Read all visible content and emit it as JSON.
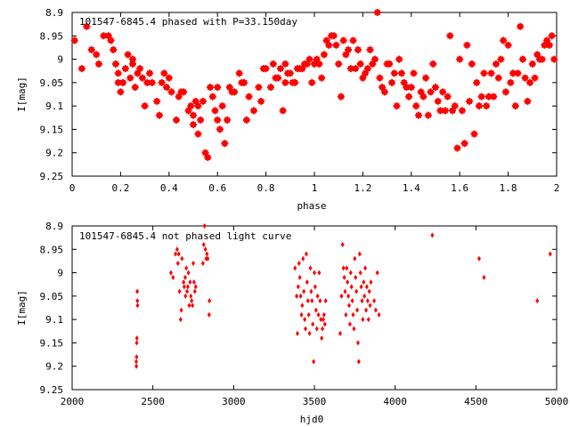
{
  "colors": {
    "points": "#ff0000",
    "axes": "#000000",
    "background": "#ffffff"
  },
  "chart_data": [
    {
      "type": "scatter",
      "title": "101547-6845.4 phased with P=33.150day",
      "xlabel": "phase",
      "ylabel": "I[mag]",
      "xlim": [
        0,
        2
      ],
      "ylim": [
        9.25,
        8.9
      ],
      "y_inverted": true,
      "grid": false,
      "marker": "star",
      "xticks": [
        "0",
        "0.2",
        "0.4",
        "0.6",
        "0.8",
        "1",
        "1.2",
        "1.4",
        "1.6",
        "1.8",
        "2"
      ],
      "yticks": [
        "8.9",
        "8.95",
        "9",
        "9.05",
        "9.1",
        "9.15",
        "9.2",
        "9.25"
      ],
      "points": [
        [
          0.01,
          8.96
        ],
        [
          0.04,
          9.02
        ],
        [
          0.06,
          8.93
        ],
        [
          0.08,
          8.98
        ],
        [
          0.1,
          8.99
        ],
        [
          0.11,
          9.01
        ],
        [
          0.13,
          8.95
        ],
        [
          0.15,
          8.95
        ],
        [
          0.16,
          8.96
        ],
        [
          0.17,
          8.98
        ],
        [
          0.18,
          9.01
        ],
        [
          0.19,
          9.05
        ],
        [
          0.19,
          9.03
        ],
        [
          0.2,
          9.07
        ],
        [
          0.21,
          9.05
        ],
        [
          0.22,
          9.02
        ],
        [
          0.23,
          8.99
        ],
        [
          0.24,
          9.04
        ],
        [
          0.25,
          9.0
        ],
        [
          0.25,
          9.01
        ],
        [
          0.26,
          9.06
        ],
        [
          0.27,
          9.03
        ],
        [
          0.28,
          9.02
        ],
        [
          0.29,
          9.04
        ],
        [
          0.3,
          9.1
        ],
        [
          0.31,
          9.05
        ],
        [
          0.32,
          9.03
        ],
        [
          0.33,
          9.05
        ],
        [
          0.35,
          9.09
        ],
        [
          0.36,
          9.12
        ],
        [
          0.37,
          9.05
        ],
        [
          0.38,
          9.03
        ],
        [
          0.39,
          9.06
        ],
        [
          0.4,
          9.04
        ],
        [
          0.41,
          9.07
        ],
        [
          0.43,
          9.13
        ],
        [
          0.44,
          9.08
        ],
        [
          0.45,
          9.07
        ],
        [
          0.46,
          9.07
        ],
        [
          0.48,
          9.11
        ],
        [
          0.49,
          9.1
        ],
        [
          0.5,
          9.12
        ],
        [
          0.5,
          9.14
        ],
        [
          0.51,
          9.09
        ],
        [
          0.52,
          9.16
        ],
        [
          0.52,
          9.1
        ],
        [
          0.53,
          9.13
        ],
        [
          0.54,
          9.09
        ],
        [
          0.55,
          9.2
        ],
        [
          0.56,
          9.21
        ],
        [
          0.57,
          9.06
        ],
        [
          0.58,
          9.08
        ],
        [
          0.59,
          9.11
        ],
        [
          0.6,
          9.13
        ],
        [
          0.6,
          9.06
        ],
        [
          0.61,
          9.15
        ],
        [
          0.62,
          9.1
        ],
        [
          0.63,
          9.18
        ],
        [
          0.64,
          9.13
        ],
        [
          0.65,
          9.06
        ],
        [
          0.66,
          9.07
        ],
        [
          0.67,
          9.07
        ],
        [
          0.69,
          9.03
        ],
        [
          0.7,
          9.05
        ],
        [
          0.71,
          9.05
        ],
        [
          0.72,
          9.13
        ],
        [
          0.73,
          9.08
        ],
        [
          0.75,
          9.11
        ],
        [
          0.77,
          9.06
        ],
        [
          0.78,
          9.09
        ],
        [
          0.79,
          9.02
        ],
        [
          0.8,
          9.02
        ],
        [
          0.82,
          9.06
        ],
        [
          0.83,
          9.01
        ],
        [
          0.84,
          9.04
        ],
        [
          0.85,
          9.04
        ],
        [
          0.86,
          9.02
        ],
        [
          0.87,
          9.11
        ],
        [
          0.88,
          9.01
        ],
        [
          0.88,
          9.05
        ],
        [
          0.89,
          9.03
        ],
        [
          0.9,
          9.03
        ],
        [
          0.91,
          9.05
        ],
        [
          0.92,
          9.05
        ],
        [
          0.93,
          9.02
        ],
        [
          0.94,
          9.02
        ],
        [
          0.95,
          9.02
        ],
        [
          0.96,
          9.01
        ],
        [
          0.97,
          9.01
        ],
        [
          0.98,
          9.0
        ],
        [
          0.99,
          9.05
        ],
        [
          1.0,
          9.01
        ],
        [
          1.01,
          9.0
        ],
        [
          1.02,
          9.01
        ],
        [
          1.03,
          9.04
        ],
        [
          1.04,
          8.99
        ],
        [
          1.05,
          8.96
        ],
        [
          1.06,
          8.97
        ],
        [
          1.07,
          8.95
        ],
        [
          1.08,
          8.95
        ],
        [
          1.09,
          8.97
        ],
        [
          1.1,
          9.01
        ],
        [
          1.11,
          9.08
        ],
        [
          1.12,
          8.96
        ],
        [
          1.13,
          8.99
        ],
        [
          1.14,
          8.98
        ],
        [
          1.15,
          9.02
        ],
        [
          1.16,
          8.96
        ],
        [
          1.17,
          9.02
        ],
        [
          1.18,
          8.98
        ],
        [
          1.19,
          9.01
        ],
        [
          1.2,
          9.04
        ],
        [
          1.21,
          9.03
        ],
        [
          1.22,
          9.02
        ],
        [
          1.23,
          8.98
        ],
        [
          1.24,
          9.01
        ],
        [
          1.25,
          9.0
        ],
        [
          1.26,
          8.9
        ],
        [
          1.27,
          9.04
        ],
        [
          1.28,
          9.06
        ],
        [
          1.29,
          9.07
        ],
        [
          1.3,
          9.01
        ],
        [
          1.31,
          9.01
        ],
        [
          1.32,
          9.05
        ],
        [
          1.33,
          9.03
        ],
        [
          1.34,
          9.1
        ],
        [
          1.35,
          9.0
        ],
        [
          1.36,
          9.03
        ],
        [
          1.37,
          9.05
        ],
        [
          1.38,
          9.06
        ],
        [
          1.39,
          9.08
        ],
        [
          1.4,
          9.06
        ],
        [
          1.41,
          9.03
        ],
        [
          1.42,
          9.1
        ],
        [
          1.43,
          9.12
        ],
        [
          1.44,
          9.07
        ],
        [
          1.45,
          9.08
        ],
        [
          1.46,
          9.04
        ],
        [
          1.47,
          9.12
        ],
        [
          1.48,
          9.07
        ],
        [
          1.49,
          9.01
        ],
        [
          1.5,
          9.06
        ],
        [
          1.51,
          9.09
        ],
        [
          1.52,
          9.11
        ],
        [
          1.53,
          9.07
        ],
        [
          1.54,
          9.11
        ],
        [
          1.55,
          9.08
        ],
        [
          1.56,
          8.95
        ],
        [
          1.57,
          9.11
        ],
        [
          1.58,
          9.1
        ],
        [
          1.59,
          9.19
        ],
        [
          1.6,
          9.0
        ],
        [
          1.61,
          9.11
        ],
        [
          1.62,
          9.18
        ],
        [
          1.63,
          8.97
        ],
        [
          1.64,
          9.09
        ],
        [
          1.65,
          9.01
        ],
        [
          1.66,
          9.16
        ],
        [
          1.67,
          9.05
        ],
        [
          1.68,
          9.1
        ],
        [
          1.69,
          9.08
        ],
        [
          1.7,
          9.03
        ],
        [
          1.71,
          9.1
        ],
        [
          1.72,
          9.08
        ],
        [
          1.73,
          9.03
        ],
        [
          1.74,
          9.08
        ],
        [
          1.75,
          9.01
        ],
        [
          1.76,
          9.04
        ],
        [
          1.77,
          9.0
        ],
        [
          1.78,
          8.96
        ],
        [
          1.79,
          9.07
        ],
        [
          1.8,
          8.97
        ],
        [
          1.81,
          9.05
        ],
        [
          1.82,
          9.03
        ],
        [
          1.83,
          9.1
        ],
        [
          1.84,
          9.03
        ],
        [
          1.85,
          8.93
        ],
        [
          1.86,
          9.0
        ],
        [
          1.87,
          9.04
        ],
        [
          1.88,
          9.09
        ],
        [
          1.89,
          9.05
        ],
        [
          1.9,
          9.01
        ],
        [
          1.91,
          9.04
        ],
        [
          1.92,
          8.99
        ],
        [
          1.93,
          9.0
        ],
        [
          1.94,
          9.0
        ],
        [
          1.95,
          8.97
        ],
        [
          1.96,
          8.96
        ],
        [
          1.97,
          8.97
        ],
        [
          1.98,
          8.95
        ],
        [
          1.99,
          9.0
        ]
      ]
    },
    {
      "type": "scatter",
      "title": "101547-6845.4 not phased light curve",
      "xlabel": "hjd0",
      "ylabel": "I[mag]",
      "xlim": [
        2000,
        5000
      ],
      "ylim": [
        9.25,
        8.9
      ],
      "y_inverted": true,
      "grid": false,
      "marker": "diamond",
      "xticks": [
        "2000",
        "2500",
        "3000",
        "3500",
        "4000",
        "4500",
        "5000"
      ],
      "yticks": [
        "8.9",
        "8.95",
        "9",
        "9.05",
        "9.1",
        "9.15",
        "9.2",
        "9.25"
      ],
      "points": [
        [
          2397,
          9.19
        ],
        [
          2398,
          9.2
        ],
        [
          2399,
          9.18
        ],
        [
          2400,
          9.15
        ],
        [
          2401,
          9.14
        ],
        [
          2403,
          9.04
        ],
        [
          2404,
          9.06
        ],
        [
          2405,
          9.07
        ],
        [
          2612,
          9.0
        ],
        [
          2625,
          9.01
        ],
        [
          2640,
          8.96
        ],
        [
          2650,
          8.95
        ],
        [
          2655,
          8.98
        ],
        [
          2660,
          8.96
        ],
        [
          2665,
          9.04
        ],
        [
          2672,
          9.1
        ],
        [
          2676,
          9.08
        ],
        [
          2680,
          8.97
        ],
        [
          2690,
          9.02
        ],
        [
          2694,
          9.03
        ],
        [
          2700,
          9.01
        ],
        [
          2702,
          9.05
        ],
        [
          2707,
          8.99
        ],
        [
          2712,
          9.04
        ],
        [
          2716,
          9.03
        ],
        [
          2720,
          9.0
        ],
        [
          2725,
          9.07
        ],
        [
          2730,
          9.02
        ],
        [
          2735,
          9.05
        ],
        [
          2740,
          9.06
        ],
        [
          2745,
          9.07
        ],
        [
          2750,
          8.98
        ],
        [
          2755,
          9.02
        ],
        [
          2760,
          9.04
        ],
        [
          2765,
          9.03
        ],
        [
          2810,
          8.98
        ],
        [
          2815,
          8.94
        ],
        [
          2820,
          8.9
        ],
        [
          2825,
          8.95
        ],
        [
          2830,
          8.97
        ],
        [
          2835,
          8.96
        ],
        [
          2840,
          8.97
        ],
        [
          2848,
          9.09
        ],
        [
          2850,
          9.06
        ],
        [
          3380,
          8.99
        ],
        [
          3390,
          9.05
        ],
        [
          3395,
          9.13
        ],
        [
          3400,
          9.03
        ],
        [
          3405,
          8.98
        ],
        [
          3410,
          9.01
        ],
        [
          3415,
          9.05
        ],
        [
          3420,
          9.09
        ],
        [
          3425,
          9.07
        ],
        [
          3430,
          8.97
        ],
        [
          3435,
          9.04
        ],
        [
          3440,
          9.1
        ],
        [
          3445,
          9.12
        ],
        [
          3450,
          8.96
        ],
        [
          3455,
          9.02
        ],
        [
          3460,
          9.06
        ],
        [
          3465,
          9.09
        ],
        [
          3470,
          9.13
        ],
        [
          3475,
          8.99
        ],
        [
          3480,
          9.04
        ],
        [
          3485,
          9.06
        ],
        [
          3490,
          9.11
        ],
        [
          3495,
          9.19
        ],
        [
          3500,
          9.0
        ],
        [
          3505,
          9.03
        ],
        [
          3510,
          9.08
        ],
        [
          3515,
          9.12
        ],
        [
          3520,
          9.05
        ],
        [
          3525,
          9.09
        ],
        [
          3530,
          9.0
        ],
        [
          3535,
          9.06
        ],
        [
          3540,
          9.1
        ],
        [
          3545,
          9.14
        ],
        [
          3550,
          9.12
        ],
        [
          3555,
          9.1
        ],
        [
          3560,
          9.09
        ],
        [
          3565,
          9.11
        ],
        [
          3570,
          9.06
        ],
        [
          3660,
          9.13
        ],
        [
          3668,
          9.05
        ],
        [
          3675,
          8.94
        ],
        [
          3680,
          8.99
        ],
        [
          3685,
          9.01
        ],
        [
          3690,
          9.04
        ],
        [
          3695,
          9.09
        ],
        [
          3700,
          8.99
        ],
        [
          3705,
          9.02
        ],
        [
          3710,
          9.05
        ],
        [
          3715,
          9.07
        ],
        [
          3720,
          9.11
        ],
        [
          3725,
          9.0
        ],
        [
          3730,
          9.03
        ],
        [
          3735,
          9.06
        ],
        [
          3740,
          9.09
        ],
        [
          3745,
          9.12
        ],
        [
          3750,
          8.97
        ],
        [
          3755,
          9.01
        ],
        [
          3760,
          9.04
        ],
        [
          3765,
          9.08
        ],
        [
          3770,
          9.15
        ],
        [
          3775,
          9.19
        ],
        [
          3780,
          8.96
        ],
        [
          3785,
          9.0
        ],
        [
          3790,
          9.03
        ],
        [
          3795,
          9.06
        ],
        [
          3800,
          9.1
        ],
        [
          3805,
          9.02
        ],
        [
          3810,
          9.05
        ],
        [
          3815,
          8.99
        ],
        [
          3820,
          9.08
        ],
        [
          3825,
          9.03
        ],
        [
          3830,
          9.06
        ],
        [
          3835,
          9.1
        ],
        [
          3840,
          9.04
        ],
        [
          3845,
          9.07
        ],
        [
          3850,
          9.02
        ],
        [
          3870,
          9.06
        ],
        [
          3880,
          9.08
        ],
        [
          3890,
          9.0
        ],
        [
          3900,
          9.09
        ],
        [
          4230,
          8.92
        ],
        [
          4520,
          8.97
        ],
        [
          4550,
          9.01
        ],
        [
          4880,
          9.06
        ],
        [
          4960,
          8.96
        ]
      ]
    }
  ]
}
